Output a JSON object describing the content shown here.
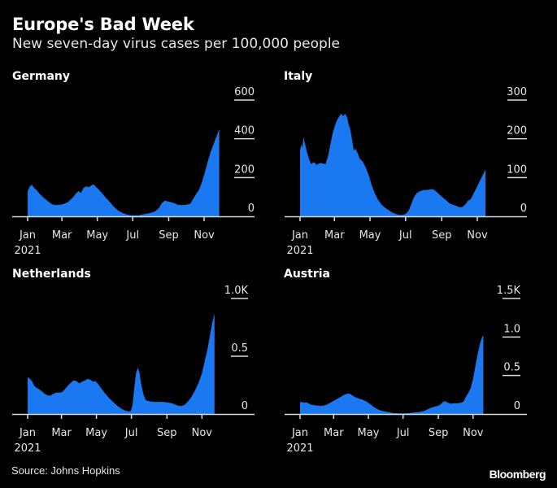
{
  "header": {
    "title": "Europe's Bad Week",
    "subtitle": "New seven-day virus cases per 100,000 people"
  },
  "footer": {
    "source": "Source: Johns Hopkins",
    "brand": "Bloomberg"
  },
  "colors": {
    "area": "#1a78f0",
    "background": "#000000",
    "axis": "#dcdcdc",
    "text": "#ffffff"
  },
  "chart_data": [
    {
      "type": "area",
      "title": "Germany",
      "xlabel": "",
      "ylabel": "",
      "x_unit": "day of 2021",
      "x_ticks": [
        {
          "day": 0,
          "label": "Jan"
        },
        {
          "day": 59,
          "label": "Mar"
        },
        {
          "day": 120,
          "label": "May"
        },
        {
          "day": 181,
          "label": "Jul"
        },
        {
          "day": 243,
          "label": "Sep"
        },
        {
          "day": 304,
          "label": "Nov"
        }
      ],
      "x_year_label": "2021",
      "y_ticks": [
        {
          "value": 0,
          "label": "0"
        },
        {
          "value": 200,
          "label": "200"
        },
        {
          "value": 400,
          "label": "400"
        },
        {
          "value": 600,
          "label": "600"
        }
      ],
      "ylim": [
        0,
        600
      ],
      "xlim": [
        0,
        365
      ],
      "grid": false,
      "points": [
        [
          0,
          130
        ],
        [
          3,
          150
        ],
        [
          7,
          165
        ],
        [
          10,
          150
        ],
        [
          14,
          140
        ],
        [
          21,
          115
        ],
        [
          28,
          95
        ],
        [
          35,
          78
        ],
        [
          42,
          62
        ],
        [
          49,
          58
        ],
        [
          56,
          60
        ],
        [
          63,
          65
        ],
        [
          70,
          75
        ],
        [
          77,
          95
        ],
        [
          84,
          120
        ],
        [
          88,
          130
        ],
        [
          92,
          120
        ],
        [
          96,
          145
        ],
        [
          100,
          155
        ],
        [
          105,
          150
        ],
        [
          110,
          160
        ],
        [
          114,
          165
        ],
        [
          118,
          150
        ],
        [
          122,
          140
        ],
        [
          128,
          120
        ],
        [
          135,
          95
        ],
        [
          142,
          72
        ],
        [
          149,
          48
        ],
        [
          156,
          30
        ],
        [
          163,
          18
        ],
        [
          170,
          10
        ],
        [
          177,
          6
        ],
        [
          184,
          5
        ],
        [
          191,
          6
        ],
        [
          198,
          10
        ],
        [
          205,
          13
        ],
        [
          212,
          18
        ],
        [
          219,
          25
        ],
        [
          226,
          42
        ],
        [
          231,
          68
        ],
        [
          236,
          80
        ],
        [
          240,
          78
        ],
        [
          245,
          75
        ],
        [
          252,
          68
        ],
        [
          259,
          60
        ],
        [
          266,
          58
        ],
        [
          273,
          60
        ],
        [
          280,
          65
        ],
        [
          285,
          90
        ],
        [
          290,
          115
        ],
        [
          295,
          135
        ],
        [
          300,
          175
        ],
        [
          305,
          225
        ],
        [
          310,
          280
        ],
        [
          315,
          330
        ],
        [
          320,
          370
        ],
        [
          325,
          410
        ],
        [
          330,
          450
        ]
      ]
    },
    {
      "type": "area",
      "title": "Italy",
      "xlabel": "",
      "ylabel": "",
      "x_unit": "day of 2021",
      "x_ticks": [
        {
          "day": 0,
          "label": "Jan"
        },
        {
          "day": 59,
          "label": "Mar"
        },
        {
          "day": 120,
          "label": "May"
        },
        {
          "day": 181,
          "label": "Jul"
        },
        {
          "day": 243,
          "label": "Sep"
        },
        {
          "day": 304,
          "label": "Nov"
        }
      ],
      "x_year_label": "2021",
      "y_ticks": [
        {
          "value": 0,
          "label": "0"
        },
        {
          "value": 100,
          "label": "100"
        },
        {
          "value": 200,
          "label": "200"
        },
        {
          "value": 300,
          "label": "300"
        }
      ],
      "ylim": [
        0,
        300
      ],
      "xlim": [
        0,
        365
      ],
      "grid": false,
      "points": [
        [
          0,
          170
        ],
        [
          2,
          185
        ],
        [
          4,
          178
        ],
        [
          6,
          205
        ],
        [
          8,
          190
        ],
        [
          12,
          165
        ],
        [
          16,
          145
        ],
        [
          19,
          135
        ],
        [
          24,
          140
        ],
        [
          28,
          133
        ],
        [
          35,
          138
        ],
        [
          40,
          136
        ],
        [
          44,
          135
        ],
        [
          48,
          155
        ],
        [
          52,
          185
        ],
        [
          56,
          215
        ],
        [
          60,
          235
        ],
        [
          64,
          250
        ],
        [
          68,
          260
        ],
        [
          71,
          265
        ],
        [
          74,
          258
        ],
        [
          77,
          265
        ],
        [
          80,
          258
        ],
        [
          83,
          240
        ],
        [
          86,
          225
        ],
        [
          89,
          200
        ],
        [
          92,
          170
        ],
        [
          95,
          175
        ],
        [
          98,
          165
        ],
        [
          102,
          150
        ],
        [
          108,
          140
        ],
        [
          113,
          125
        ],
        [
          118,
          105
        ],
        [
          123,
          80
        ],
        [
          128,
          60
        ],
        [
          134,
          42
        ],
        [
          140,
          30
        ],
        [
          146,
          22
        ],
        [
          152,
          16
        ],
        [
          158,
          10
        ],
        [
          164,
          6
        ],
        [
          170,
          4
        ],
        [
          176,
          4
        ],
        [
          181,
          6
        ],
        [
          186,
          14
        ],
        [
          190,
          28
        ],
        [
          195,
          48
        ],
        [
          200,
          60
        ],
        [
          206,
          65
        ],
        [
          212,
          68
        ],
        [
          218,
          68
        ],
        [
          224,
          70
        ],
        [
          228,
          70
        ],
        [
          232,
          66
        ],
        [
          238,
          58
        ],
        [
          244,
          50
        ],
        [
          250,
          42
        ],
        [
          256,
          34
        ],
        [
          262,
          30
        ],
        [
          268,
          27
        ],
        [
          273,
          24
        ],
        [
          278,
          24
        ],
        [
          283,
          30
        ],
        [
          288,
          40
        ],
        [
          293,
          45
        ],
        [
          298,
          60
        ],
        [
          303,
          75
        ],
        [
          308,
          90
        ],
        [
          313,
          105
        ],
        [
          318,
          120
        ]
      ]
    },
    {
      "type": "area",
      "title": "Netherlands",
      "xlabel": "",
      "ylabel": "",
      "x_unit": "day of 2021",
      "x_ticks": [
        {
          "day": 0,
          "label": "Jan"
        },
        {
          "day": 59,
          "label": "Mar"
        },
        {
          "day": 120,
          "label": "May"
        },
        {
          "day": 181,
          "label": "Jul"
        },
        {
          "day": 243,
          "label": "Sep"
        },
        {
          "day": 304,
          "label": "Nov"
        }
      ],
      "x_year_label": "2021",
      "y_ticks": [
        {
          "value": 0,
          "label": "0"
        },
        {
          "value": 500,
          "label": "0.5"
        },
        {
          "value": 1000,
          "label": "1.0K"
        }
      ],
      "ylim": [
        0,
        1000
      ],
      "xlim": [
        0,
        365
      ],
      "grid": false,
      "points": [
        [
          0,
          320
        ],
        [
          4,
          305
        ],
        [
          8,
          280
        ],
        [
          12,
          240
        ],
        [
          16,
          225
        ],
        [
          20,
          215
        ],
        [
          25,
          195
        ],
        [
          30,
          175
        ],
        [
          35,
          160
        ],
        [
          40,
          160
        ],
        [
          45,
          175
        ],
        [
          50,
          185
        ],
        [
          56,
          185
        ],
        [
          60,
          190
        ],
        [
          65,
          215
        ],
        [
          70,
          245
        ],
        [
          75,
          270
        ],
        [
          80,
          290
        ],
        [
          85,
          285
        ],
        [
          90,
          265
        ],
        [
          95,
          280
        ],
        [
          100,
          290
        ],
        [
          105,
          305
        ],
        [
          110,
          295
        ],
        [
          114,
          280
        ],
        [
          118,
          285
        ],
        [
          122,
          265
        ],
        [
          128,
          225
        ],
        [
          134,
          185
        ],
        [
          140,
          150
        ],
        [
          146,
          120
        ],
        [
          152,
          90
        ],
        [
          158,
          65
        ],
        [
          164,
          45
        ],
        [
          170,
          30
        ],
        [
          176,
          22
        ],
        [
          180,
          25
        ],
        [
          183,
          80
        ],
        [
          186,
          220
        ],
        [
          189,
          350
        ],
        [
          192,
          400
        ],
        [
          195,
          360
        ],
        [
          198,
          260
        ],
        [
          202,
          170
        ],
        [
          206,
          120
        ],
        [
          212,
          110
        ],
        [
          220,
          105
        ],
        [
          228,
          105
        ],
        [
          236,
          105
        ],
        [
          244,
          100
        ],
        [
          250,
          95
        ],
        [
          256,
          85
        ],
        [
          262,
          72
        ],
        [
          268,
          68
        ],
        [
          274,
          80
        ],
        [
          280,
          110
        ],
        [
          286,
          150
        ],
        [
          292,
          205
        ],
        [
          298,
          270
        ],
        [
          304,
          350
        ],
        [
          309,
          460
        ],
        [
          314,
          570
        ],
        [
          318,
          680
        ],
        [
          322,
          790
        ],
        [
          326,
          870
        ]
      ]
    },
    {
      "type": "area",
      "title": "Austria",
      "xlabel": "",
      "ylabel": "",
      "x_unit": "day of 2021",
      "x_ticks": [
        {
          "day": 0,
          "label": "Jan"
        },
        {
          "day": 59,
          "label": "Mar"
        },
        {
          "day": 120,
          "label": "May"
        },
        {
          "day": 181,
          "label": "Jul"
        },
        {
          "day": 243,
          "label": "Sep"
        },
        {
          "day": 304,
          "label": "Nov"
        }
      ],
      "x_year_label": "2021",
      "y_ticks": [
        {
          "value": 0,
          "label": "0"
        },
        {
          "value": 500,
          "label": "0.5"
        },
        {
          "value": 1000,
          "label": "1.0"
        },
        {
          "value": 1500,
          "label": "1.5K"
        }
      ],
      "ylim": [
        0,
        1500
      ],
      "xlim": [
        0,
        365
      ],
      "grid": false,
      "points": [
        [
          0,
          155
        ],
        [
          6,
          150
        ],
        [
          12,
          150
        ],
        [
          18,
          125
        ],
        [
          24,
          115
        ],
        [
          30,
          110
        ],
        [
          36,
          105
        ],
        [
          42,
          110
        ],
        [
          48,
          125
        ],
        [
          54,
          150
        ],
        [
          60,
          175
        ],
        [
          66,
          200
        ],
        [
          72,
          225
        ],
        [
          78,
          250
        ],
        [
          84,
          265
        ],
        [
          88,
          262
        ],
        [
          92,
          240
        ],
        [
          98,
          215
        ],
        [
          104,
          200
        ],
        [
          110,
          185
        ],
        [
          116,
          165
        ],
        [
          122,
          135
        ],
        [
          128,
          100
        ],
        [
          134,
          70
        ],
        [
          140,
          50
        ],
        [
          146,
          38
        ],
        [
          152,
          28
        ],
        [
          158,
          20
        ],
        [
          164,
          14
        ],
        [
          170,
          10
        ],
        [
          176,
          8
        ],
        [
          182,
          8
        ],
        [
          188,
          10
        ],
        [
          194,
          14
        ],
        [
          200,
          20
        ],
        [
          206,
          22
        ],
        [
          212,
          28
        ],
        [
          218,
          40
        ],
        [
          224,
          60
        ],
        [
          230,
          80
        ],
        [
          236,
          95
        ],
        [
          242,
          105
        ],
        [
          247,
          125
        ],
        [
          251,
          155
        ],
        [
          255,
          165
        ],
        [
          260,
          145
        ],
        [
          265,
          135
        ],
        [
          270,
          140
        ],
        [
          276,
          140
        ],
        [
          282,
          145
        ],
        [
          287,
          160
        ],
        [
          291,
          220
        ],
        [
          296,
          280
        ],
        [
          300,
          340
        ],
        [
          304,
          460
        ],
        [
          308,
          620
        ],
        [
          312,
          780
        ],
        [
          316,
          910
        ],
        [
          320,
          1000
        ],
        [
          322,
          1020
        ]
      ]
    }
  ]
}
